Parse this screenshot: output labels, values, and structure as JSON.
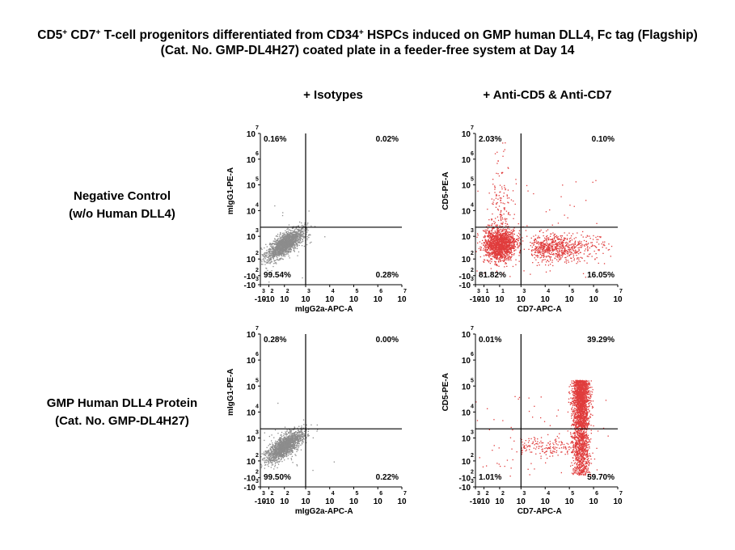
{
  "figure": {
    "title_line1_parts": [
      {
        "t": "CD5",
        "sup": false
      },
      {
        "t": "+",
        "sup": true
      },
      {
        "t": " CD7",
        "sup": false
      },
      {
        "t": "+",
        "sup": true
      },
      {
        "t": " T-cell progenitors differentiated from CD34",
        "sup": false
      },
      {
        "t": "+",
        "sup": true
      },
      {
        "t": " HSPCs induced on GMP human DLL4, Fc tag (Flagship)",
        "sup": false
      }
    ],
    "title_line2": "(Cat. No. GMP-DL4H27) coated plate in a feeder-free system at Day 14",
    "columns": [
      "+ Isotypes",
      "+ Anti-CD5 & Anti-CD7"
    ],
    "rows": [
      {
        "line1": "Negative Control",
        "line2": "(w/o Human DLL4)"
      },
      {
        "line1": "GMP Human DLL4 Protein",
        "line2": "(Cat. No. GMP-DL4H27)"
      }
    ],
    "colors": {
      "isotype_dots": "#8c8c8c",
      "antibody_dots": "#e03c3c",
      "text": "#000000"
    }
  },
  "chart_data": [
    {
      "type": "scatter",
      "panel": "negative-control-isotypes",
      "xlabel": "mIgG2a-APC-A",
      "ylabel": "mIgG1-PE-A",
      "scale": "biexponential",
      "x_ticks": [
        "-10^3",
        "-10^2",
        "10^2",
        "10^3",
        "10^4",
        "10^5",
        "10^6",
        "10^7"
      ],
      "y_ticks": [
        "-10^3",
        "-10^2",
        "10^2",
        "10^3",
        "10^4",
        "10^5",
        "10^6",
        "10^7"
      ],
      "quadrants": {
        "upper_left": "0.16%",
        "upper_right": "0.02%",
        "lower_left": "99.54%",
        "lower_right": "0.28%"
      }
    },
    {
      "type": "scatter",
      "panel": "negative-control-antibodies",
      "xlabel": "CD7-APC-A",
      "ylabel": "CD5-PE-A",
      "scale": "biexponential",
      "x_ticks": [
        "-10^3",
        "-10^1",
        "10^1",
        "10^3",
        "10^4",
        "10^5",
        "10^6",
        "10^7"
      ],
      "y_ticks": [
        "-10^3",
        "-10^2",
        "10^2",
        "10^3",
        "10^4",
        "10^5",
        "10^6",
        "10^7"
      ],
      "quadrants": {
        "upper_left": "2.03%",
        "upper_right": "0.10%",
        "lower_left": "81.82%",
        "lower_right": "16.05%"
      }
    },
    {
      "type": "scatter",
      "panel": "dll4-isotypes",
      "xlabel": "mIgG2a-APC-A",
      "ylabel": "mIgG1-PE-A",
      "scale": "biexponential",
      "x_ticks": [
        "-10^3",
        "-10^2",
        "10^2",
        "10^3",
        "10^4",
        "10^5",
        "10^6",
        "10^7"
      ],
      "y_ticks": [
        "-10^3",
        "-10^2",
        "10^2",
        "10^3",
        "10^4",
        "10^5",
        "10^6",
        "10^7"
      ],
      "quadrants": {
        "upper_left": "0.28%",
        "upper_right": "0.00%",
        "lower_left": "99.50%",
        "lower_right": "0.22%"
      }
    },
    {
      "type": "scatter",
      "panel": "dll4-antibodies",
      "xlabel": "CD7-APC-A",
      "ylabel": "CD5-PE-A",
      "scale": "biexponential",
      "x_ticks": [
        "-10^3",
        "-10^2",
        "10^2",
        "10^3",
        "10^4",
        "10^5",
        "10^6",
        "10^7"
      ],
      "y_ticks": [
        "-10^3",
        "-10^2",
        "10^2",
        "10^3",
        "10^4",
        "10^5",
        "10^6",
        "10^7"
      ],
      "quadrants": {
        "upper_left": "0.01%",
        "upper_right": "39.29%",
        "lower_left": "1.01%",
        "lower_right": "59.70%"
      }
    }
  ]
}
